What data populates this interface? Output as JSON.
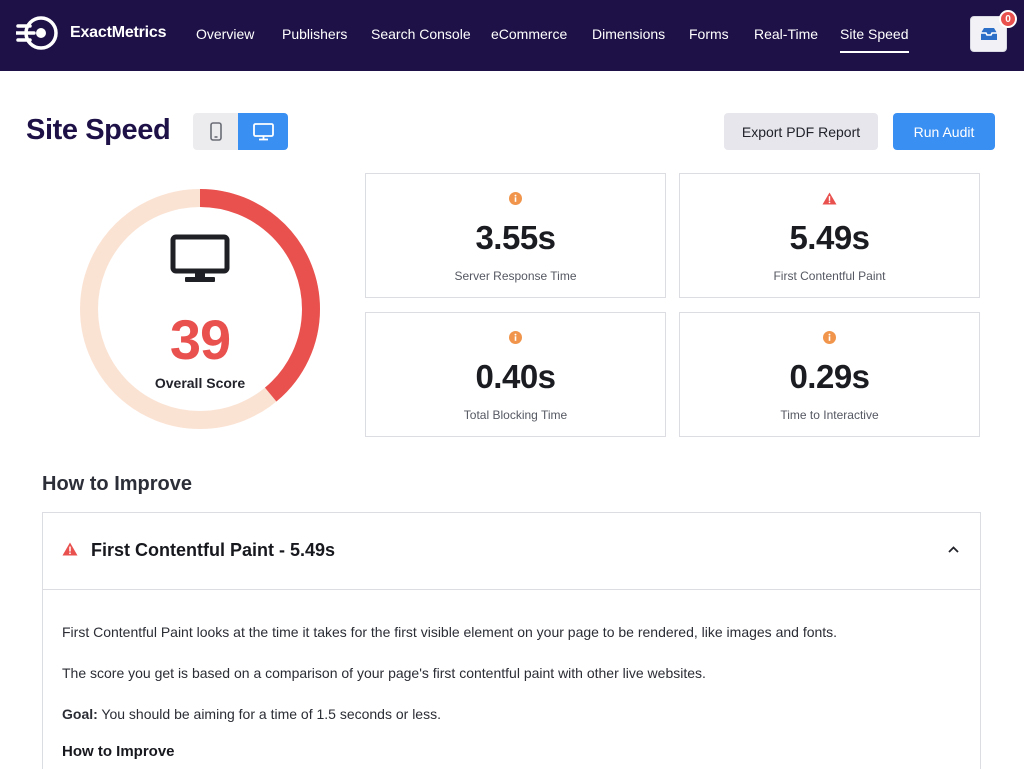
{
  "brand": {
    "name": "ExactMetrics"
  },
  "nav": {
    "items": [
      {
        "label": "Overview"
      },
      {
        "label": "Publishers"
      },
      {
        "label": "Search Console"
      },
      {
        "label": "eCommerce"
      },
      {
        "label": "Dimensions"
      },
      {
        "label": "Forms"
      },
      {
        "label": "Real-Time"
      },
      {
        "label": "Site Speed",
        "active": true
      }
    ],
    "notifications": {
      "count": "0",
      "icon": "inbox-icon"
    }
  },
  "page": {
    "title": "Site Speed",
    "device_toggle": {
      "mobile_icon": "mobile-icon",
      "desktop_icon": "desktop-icon",
      "selected": "desktop"
    },
    "export_label": "Export PDF Report",
    "run_audit_label": "Run Audit"
  },
  "score": {
    "value": "39",
    "fraction": 0.39,
    "label": "Overall Score",
    "icon": "desktop-icon",
    "colors": {
      "progress": "#e9514f",
      "track": "#fbe3d4"
    }
  },
  "metrics": [
    {
      "value": "3.55s",
      "label": "Server Response Time",
      "status": "info",
      "status_color": "#f0954b"
    },
    {
      "value": "5.49s",
      "label": "First Contentful Paint",
      "status": "warning",
      "status_color": "#e9514f"
    },
    {
      "value": "0.40s",
      "label": "Total Blocking Time",
      "status": "info",
      "status_color": "#f0954b"
    },
    {
      "value": "0.29s",
      "label": "Time to Interactive",
      "status": "info",
      "status_color": "#f0954b"
    }
  ],
  "improve": {
    "title": "How to Improve",
    "item": {
      "title": "First Contentful Paint - 5.49s",
      "p1": "First Contentful Paint looks at the time it takes for the first visible element on your page to be rendered, like images and fonts.",
      "p2": "The score you get is based on a comparison of your page's first contentful paint with other live websites.",
      "goal_label": "Goal:",
      "goal_text": " You should be aiming for a time of 1.5 seconds or less.",
      "subheading": "How to Improve"
    }
  },
  "colors": {
    "nav_bg": "#1e1147",
    "accent": "#3a8ff2",
    "danger": "#e9514f",
    "info": "#f0954b"
  }
}
